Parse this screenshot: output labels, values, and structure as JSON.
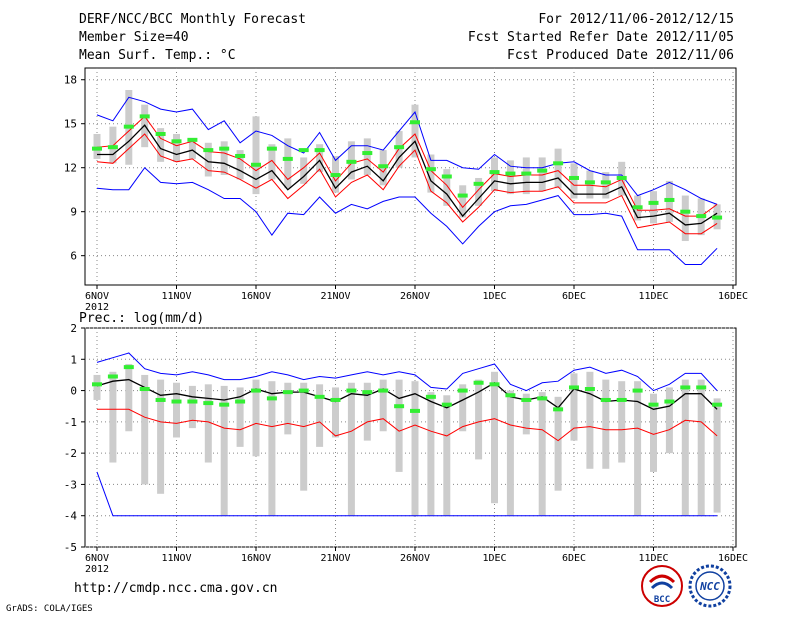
{
  "header": {
    "title": "DERF/NCC/BCC Monthly Forecast",
    "member_size": "Member Size=40",
    "variable": "Mean Surf. Temp.: °C",
    "period": "For 2012/11/06-2012/12/15",
    "started": "Fcst Started Refer Date 2012/11/05",
    "produced": "Fcst Produced Date 2012/11/06"
  },
  "footer": {
    "url": "http://cmdp.ncc.cma.gov.cn",
    "credit": "GrADS: COLA/IGES",
    "logo1": "BCC",
    "logo2": "NCC"
  },
  "colors": {
    "envelope": "#0000ff",
    "ensemble_range": "#ff0000",
    "mean": "#000000",
    "obs": "#33ee33",
    "box": "#cccccc"
  },
  "chart_data": [
    {
      "type": "line",
      "title": "Mean Surf. Temp.: °C",
      "x": [
        "2012-11-06",
        "2012-11-07",
        "2012-11-08",
        "2012-11-09",
        "2012-11-10",
        "2012-11-11",
        "2012-11-12",
        "2012-11-13",
        "2012-11-14",
        "2012-11-15",
        "2012-11-16",
        "2012-11-17",
        "2012-11-18",
        "2012-11-19",
        "2012-11-20",
        "2012-11-21",
        "2012-11-22",
        "2012-11-23",
        "2012-11-24",
        "2012-11-25",
        "2012-11-26",
        "2012-11-27",
        "2012-11-28",
        "2012-11-29",
        "2012-11-30",
        "2012-12-01",
        "2012-12-02",
        "2012-12-03",
        "2012-12-04",
        "2012-12-05",
        "2012-12-06",
        "2012-12-07",
        "2012-12-08",
        "2012-12-09",
        "2012-12-10",
        "2012-12-11",
        "2012-12-12",
        "2012-12-13",
        "2012-12-14",
        "2012-12-15"
      ],
      "xtick_labels": [
        "6NOV",
        "11NOV",
        "16NOV",
        "21NOV",
        "26NOV",
        "1DEC",
        "6DEC",
        "11DEC",
        "16DEC"
      ],
      "xtick_sub": "2012",
      "yticks": [
        6,
        9,
        12,
        15,
        18
      ],
      "ylim": [
        4,
        18.8
      ],
      "series": [
        {
          "name": "envelope_max",
          "values": [
            15.6,
            15.2,
            16.8,
            16.5,
            16.0,
            15.8,
            16.0,
            14.6,
            15.2,
            13.7,
            14.5,
            14.2,
            13.5,
            13.0,
            14.4,
            12.5,
            13.5,
            13.5,
            13.2,
            14.5,
            15.8,
            12.5,
            12.5,
            12.0,
            11.9,
            12.9,
            12.1,
            12.0,
            12.0,
            12.3,
            12.4,
            11.8,
            11.5,
            11.5,
            10.1,
            10.5,
            11.0,
            10.5,
            9.9,
            9.5
          ]
        },
        {
          "name": "range_max",
          "values": [
            13.4,
            13.5,
            14.5,
            15.5,
            14.0,
            13.5,
            13.8,
            13.1,
            13.0,
            12.6,
            11.8,
            12.5,
            11.2,
            12.0,
            13.0,
            11.1,
            12.3,
            12.6,
            11.7,
            13.3,
            14.3,
            11.8,
            10.8,
            9.3,
            10.5,
            11.6,
            11.4,
            11.5,
            11.5,
            11.8,
            10.8,
            10.8,
            10.7,
            11.2,
            9.1,
            9.1,
            9.2,
            8.7,
            8.7,
            9.5
          ]
        },
        {
          "name": "mean",
          "values": [
            12.9,
            12.9,
            13.8,
            14.9,
            13.3,
            12.9,
            13.2,
            12.4,
            12.3,
            11.8,
            11.2,
            11.8,
            10.5,
            11.4,
            12.5,
            10.6,
            11.7,
            12.1,
            11.1,
            12.7,
            13.8,
            11.1,
            10.2,
            8.7,
            9.9,
            11.1,
            10.9,
            11.0,
            11.0,
            11.3,
            10.2,
            10.2,
            10.2,
            10.7,
            8.6,
            8.7,
            8.9,
            8.1,
            8.2,
            8.9
          ]
        },
        {
          "name": "range_min",
          "values": [
            12.4,
            12.3,
            13.3,
            14.3,
            12.8,
            12.4,
            12.6,
            11.8,
            11.7,
            11.2,
            10.6,
            11.2,
            9.9,
            10.8,
            11.9,
            10.0,
            11.0,
            11.5,
            10.5,
            12.1,
            13.2,
            10.4,
            9.6,
            8.3,
            9.3,
            10.5,
            10.3,
            10.4,
            10.4,
            10.7,
            9.6,
            9.6,
            9.6,
            10.1,
            7.9,
            8.1,
            8.3,
            7.5,
            7.5,
            8.2
          ]
        },
        {
          "name": "envelope_min",
          "values": [
            10.6,
            10.5,
            10.5,
            12.0,
            11.0,
            10.9,
            11.0,
            10.5,
            9.9,
            9.9,
            9.0,
            7.4,
            8.9,
            8.8,
            10.0,
            8.9,
            9.5,
            9.2,
            9.7,
            10.0,
            10.0,
            8.9,
            8.0,
            6.8,
            8.0,
            9.0,
            9.4,
            9.5,
            9.8,
            10.1,
            8.8,
            8.8,
            8.9,
            8.7,
            6.4,
            6.4,
            6.4,
            5.4,
            5.4,
            6.5
          ]
        },
        {
          "name": "observation",
          "values": [
            13.3,
            13.4,
            14.8,
            15.5,
            14.3,
            13.8,
            13.9,
            13.2,
            13.3,
            12.8,
            12.2,
            13.3,
            12.6,
            13.2,
            13.2,
            11.5,
            12.4,
            13.0,
            12.1,
            13.4,
            15.1,
            11.9,
            11.4,
            10.1,
            10.9,
            11.7,
            11.6,
            11.6,
            11.8,
            12.3,
            11.3,
            11.0,
            11.0,
            11.3,
            9.3,
            9.6,
            9.8,
            9.0,
            8.7,
            8.6
          ]
        },
        {
          "name": "box_top",
          "values": [
            14.3,
            14.8,
            17.3,
            16.3,
            14.7,
            14.3,
            14.0,
            13.7,
            13.8,
            13.2,
            15.5,
            13.6,
            14.0,
            12.7,
            13.6,
            12.8,
            13.8,
            14.0,
            13.2,
            14.5,
            16.3,
            12.9,
            11.9,
            10.8,
            11.3,
            12.7,
            12.5,
            12.7,
            12.7,
            13.3,
            12.3,
            11.8,
            11.7,
            12.4,
            10.1,
            10.4,
            11.1,
            10.1,
            9.9,
            9.5
          ]
        },
        {
          "name": "box_bottom",
          "values": [
            12.6,
            12.3,
            12.2,
            13.4,
            12.4,
            12.4,
            12.6,
            11.4,
            11.5,
            11.2,
            10.2,
            11.2,
            10.6,
            10.9,
            11.7,
            10.3,
            11.2,
            11.5,
            10.8,
            12.0,
            12.7,
            10.3,
            9.4,
            8.6,
            9.4,
            10.4,
            10.2,
            10.2,
            10.4,
            10.6,
            9.9,
            9.9,
            9.9,
            10.1,
            8.4,
            8.2,
            8.3,
            7.0,
            7.4,
            7.8
          ]
        }
      ]
    },
    {
      "type": "line",
      "title": "Prec.: log(mm/d)",
      "x": [
        "2012-11-06",
        "2012-11-07",
        "2012-11-08",
        "2012-11-09",
        "2012-11-10",
        "2012-11-11",
        "2012-11-12",
        "2012-11-13",
        "2012-11-14",
        "2012-11-15",
        "2012-11-16",
        "2012-11-17",
        "2012-11-18",
        "2012-11-19",
        "2012-11-20",
        "2012-11-21",
        "2012-11-22",
        "2012-11-23",
        "2012-11-24",
        "2012-11-25",
        "2012-11-26",
        "2012-11-27",
        "2012-11-28",
        "2012-11-29",
        "2012-11-30",
        "2012-12-01",
        "2012-12-02",
        "2012-12-03",
        "2012-12-04",
        "2012-12-05",
        "2012-12-06",
        "2012-12-07",
        "2012-12-08",
        "2012-12-09",
        "2012-12-10",
        "2012-12-11",
        "2012-12-12",
        "2012-12-13",
        "2012-12-14",
        "2012-12-15"
      ],
      "xtick_labels": [
        "6NOV",
        "11NOV",
        "16NOV",
        "21NOV",
        "26NOV",
        "1DEC",
        "6DEC",
        "11DEC",
        "16DEC"
      ],
      "xtick_sub": "2012",
      "yticks": [
        -5,
        -4,
        -3,
        -2,
        -1,
        0,
        1,
        2
      ],
      "ylim": [
        -5,
        2
      ],
      "series": [
        {
          "name": "envelope_max",
          "values": [
            0.9,
            1.05,
            1.2,
            0.7,
            0.55,
            0.5,
            0.6,
            0.5,
            0.35,
            0.35,
            0.45,
            0.6,
            0.5,
            0.35,
            0.45,
            0.4,
            0.5,
            0.6,
            0.5,
            0.6,
            0.5,
            0.1,
            0.05,
            0.55,
            0.7,
            0.85,
            0.2,
            0.0,
            0.25,
            0.3,
            0.65,
            0.75,
            0.55,
            0.65,
            0.45,
            0.0,
            0.2,
            0.55,
            0.55,
            0.0
          ]
        },
        {
          "name": "mean",
          "values": [
            0.15,
            0.3,
            0.35,
            0.1,
            -0.15,
            -0.1,
            -0.2,
            -0.25,
            -0.3,
            -0.2,
            0.05,
            -0.1,
            -0.05,
            -0.05,
            -0.2,
            -0.35,
            -0.1,
            -0.15,
            0.05,
            -0.25,
            -0.1,
            -0.35,
            -0.55,
            -0.3,
            -0.05,
            0.25,
            -0.2,
            -0.3,
            -0.2,
            -0.55,
            0.05,
            -0.1,
            -0.35,
            -0.3,
            -0.35,
            -0.6,
            -0.5,
            -0.1,
            -0.1,
            -0.6
          ]
        },
        {
          "name": "range_min",
          "values": [
            -0.6,
            -0.6,
            -0.6,
            -0.85,
            -1.0,
            -1.05,
            -0.95,
            -1.0,
            -1.2,
            -1.25,
            -1.05,
            -1.15,
            -1.05,
            -1.15,
            -1.0,
            -1.45,
            -1.3,
            -1.0,
            -0.9,
            -1.3,
            -1.1,
            -1.3,
            -1.45,
            -1.15,
            -1.0,
            -0.9,
            -1.1,
            -1.2,
            -1.25,
            -1.6,
            -1.2,
            -1.15,
            -1.25,
            -1.25,
            -1.2,
            -1.4,
            -1.25,
            -0.95,
            -1.0,
            -1.45
          ]
        },
        {
          "name": "envelope_min",
          "values": [
            -2.6,
            -4.0,
            -4.0,
            -4.0,
            -4.0,
            -4.0,
            -4.0,
            -4.0,
            -4.0,
            -4.0,
            -4.0,
            -4.0,
            -4.0,
            -4.0,
            -4.0,
            -4.0,
            -4.0,
            -4.0,
            -4.0,
            -4.0,
            -4.0,
            -4.0,
            -4.0,
            -4.0,
            -4.0,
            -4.0,
            -4.0,
            -4.0,
            -4.0,
            -4.0,
            -4.0,
            -4.0,
            -4.0,
            -4.0,
            -4.0,
            -4.0,
            -4.0,
            -4.0,
            -4.0,
            -4.0
          ]
        },
        {
          "name": "observation",
          "values": [
            0.2,
            0.45,
            0.75,
            0.05,
            -0.3,
            -0.35,
            -0.35,
            -0.4,
            -0.45,
            -0.35,
            0.0,
            -0.25,
            -0.05,
            0.0,
            -0.2,
            -0.3,
            0.0,
            -0.05,
            0.0,
            -0.5,
            -0.65,
            -0.2,
            -0.45,
            0.0,
            0.25,
            0.2,
            -0.15,
            -0.3,
            -0.25,
            -0.6,
            0.1,
            0.05,
            -0.3,
            -0.3,
            0.0,
            -0.45,
            -0.35,
            0.1,
            0.1,
            -0.45
          ]
        },
        {
          "name": "box_top",
          "values": [
            0.5,
            0.6,
            0.85,
            0.5,
            0.35,
            0.25,
            0.15,
            0.2,
            0.15,
            0.1,
            0.35,
            0.3,
            0.25,
            0.25,
            0.2,
            0.1,
            0.25,
            0.25,
            0.35,
            0.35,
            0.3,
            -0.05,
            -0.15,
            0.2,
            0.35,
            0.6,
            0.0,
            -0.1,
            -0.05,
            -0.2,
            0.55,
            0.6,
            0.35,
            0.3,
            0.3,
            -0.1,
            0.1,
            0.35,
            0.35,
            -0.25
          ]
        },
        {
          "name": "box_bottom",
          "values": [
            -0.3,
            -2.3,
            -1.3,
            -3.0,
            -3.3,
            -1.5,
            -1.2,
            -2.3,
            -4.0,
            -1.8,
            -2.1,
            -4.0,
            -1.4,
            -3.2,
            -1.8,
            -1.5,
            -4.0,
            -1.6,
            -1.3,
            -2.6,
            -4.0,
            -4.0,
            -4.0,
            -1.3,
            -2.2,
            -3.6,
            -4.0,
            -1.4,
            -4.0,
            -3.2,
            -1.6,
            -2.5,
            -2.5,
            -2.3,
            -4.0,
            -2.6,
            -2.0,
            -4.0,
            -4.0,
            -3.9
          ]
        }
      ]
    }
  ]
}
